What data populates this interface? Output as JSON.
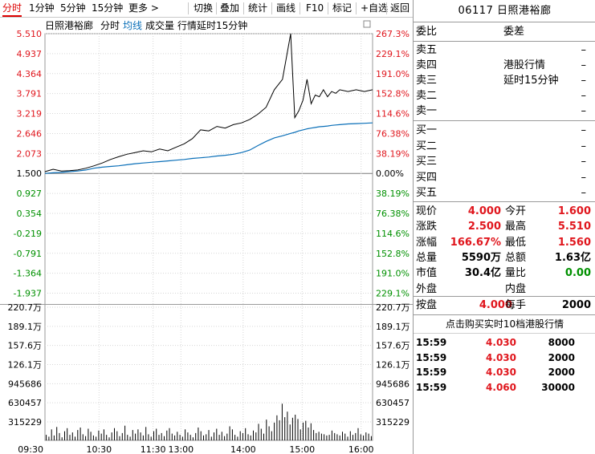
{
  "toolbar": {
    "left_items": [
      "分时",
      "1分钟",
      "5分钟",
      "15分钟",
      "更多 >"
    ],
    "right_items": [
      "切换",
      "叠加",
      "统计",
      "画线",
      "F10",
      "标记",
      "+自选",
      "返回"
    ]
  },
  "chart_header": {
    "stock_name": "日照港裕廊",
    "mode": "分时",
    "avg_line_label": "均线",
    "volume_label": "成交量",
    "delay_note": "行情延时15分钟"
  },
  "price_axis": {
    "left": [
      "5.510",
      "4.937",
      "4.364",
      "3.791",
      "3.219",
      "2.646",
      "2.073",
      "1.500",
      "0.927",
      "0.354",
      "-0.219",
      "-0.791",
      "-1.364",
      "-1.937"
    ],
    "right": [
      "267.3%",
      "229.1%",
      "191.0%",
      "152.8%",
      "114.6%",
      "76.38%",
      "38.19%",
      "0.00%",
      "38.19%",
      "76.38%",
      "114.6%",
      "152.8%",
      "191.0%",
      "229.1%"
    ]
  },
  "volume_axis": [
    "220.7万",
    "189.1万",
    "157.6万",
    "126.1万",
    "945686",
    "630457",
    "315229"
  ],
  "time_axis": [
    "09:30",
    "10:30",
    "11:30",
    "13:00",
    "14:00",
    "15:00",
    "16:00"
  ],
  "colors": {
    "up": "#e0161d",
    "down": "#009000",
    "price_line": "#000000",
    "avg_line": "#0a6fb8",
    "grid": "#d6d6d6",
    "avg_label": "#0a6fb8"
  },
  "chart_data": {
    "type": "line",
    "prev_close": 1.5,
    "ylim": [
      -1.937,
      5.51
    ],
    "x": [
      0,
      10,
      20,
      30,
      40,
      50,
      60,
      70,
      80,
      90,
      100,
      110,
      120,
      130,
      140,
      150,
      160,
      170,
      180,
      190,
      200,
      210,
      220,
      230,
      240,
      250,
      260,
      270,
      280,
      290,
      300,
      305,
      310,
      315,
      320,
      325,
      330,
      335,
      340,
      345,
      350,
      355,
      360,
      370,
      380,
      390,
      400
    ],
    "series": [
      {
        "values": [
          1.55,
          1.62,
          1.57,
          1.58,
          1.6,
          1.65,
          1.72,
          1.8,
          1.9,
          1.98,
          2.05,
          2.1,
          2.15,
          2.12,
          2.2,
          2.15,
          2.25,
          2.35,
          2.5,
          2.75,
          2.72,
          2.85,
          2.8,
          2.9,
          2.95,
          3.05,
          3.2,
          3.4,
          3.9,
          4.2,
          5.51,
          3.1,
          3.3,
          3.6,
          4.2,
          3.5,
          3.75,
          3.7,
          3.9,
          3.7,
          3.85,
          3.8,
          3.9,
          3.85,
          3.9,
          3.85,
          3.9
        ]
      },
      {
        "values": [
          1.5,
          1.52,
          1.53,
          1.55,
          1.57,
          1.6,
          1.65,
          1.68,
          1.7,
          1.72,
          1.75,
          1.78,
          1.8,
          1.82,
          1.84,
          1.86,
          1.88,
          1.9,
          1.93,
          1.95,
          1.97,
          2.0,
          2.02,
          2.05,
          2.1,
          2.17,
          2.3,
          2.42,
          2.52,
          2.58,
          2.65,
          2.68,
          2.72,
          2.75,
          2.78,
          2.8,
          2.82,
          2.84,
          2.85,
          2.86,
          2.88,
          2.89,
          2.9,
          2.92,
          2.93,
          2.94,
          2.95
        ]
      }
    ],
    "volume": {
      "ylim": [
        0,
        2207000
      ],
      "bars": [
        90000,
        60000,
        180000,
        80000,
        220000,
        120000,
        50000,
        150000,
        200000,
        90000,
        130000,
        60000,
        170000,
        210000,
        100000,
        70000,
        190000,
        140000,
        80000,
        60000,
        160000,
        110000,
        180000,
        90000,
        50000,
        130000,
        200000,
        150000,
        70000,
        120000,
        240000,
        90000,
        60000,
        170000,
        110000,
        180000,
        130000,
        80000,
        220000,
        100000,
        60000,
        150000,
        190000,
        90000,
        120000,
        70000,
        160000,
        200000,
        110000,
        80000,
        140000,
        90000,
        60000,
        180000,
        130000,
        90000,
        50000,
        120000,
        210000,
        150000,
        80000,
        100000,
        170000,
        60000,
        130000,
        190000,
        90000,
        140000,
        70000,
        110000,
        230000,
        180000,
        90000,
        60000,
        150000,
        120000,
        200000,
        100000,
        80000,
        160000,
        130000,
        270000,
        190000,
        110000,
        340000,
        230000,
        150000,
        290000,
        410000,
        330000,
        600000,
        380000,
        470000,
        260000,
        370000,
        420000,
        350000,
        180000,
        290000,
        320000,
        210000,
        280000,
        170000,
        120000,
        140000,
        110000,
        100000,
        80000,
        90000,
        160000,
        120000,
        100000,
        80000,
        140000,
        110000,
        60000,
        150000,
        90000,
        120000,
        200000,
        100000,
        80000,
        130000,
        110000,
        70000
      ]
    }
  },
  "panel": {
    "code": "06117",
    "name": "日照港裕廊",
    "weibi_label": "委比",
    "weicha_label": "委差",
    "sells": [
      "卖五",
      "卖四",
      "卖三",
      "卖二",
      "卖一"
    ],
    "buys": [
      "买一",
      "买二",
      "买三",
      "买四",
      "买五"
    ],
    "dash": "–",
    "notice_line1": "港股行情",
    "notice_line2": "延时15分钟",
    "quote": [
      {
        "l1": "现价",
        "v1": "4.000",
        "l2": "今开",
        "v2": "1.600"
      },
      {
        "l1": "涨跌",
        "v1": "2.500",
        "l2": "最高",
        "v2": "5.510"
      },
      {
        "l1": "涨幅",
        "v1": "166.67%",
        "l2": "最低",
        "v2": "1.560"
      },
      {
        "l1": "总量",
        "v1": "5590万",
        "l2": "总额",
        "v2": "1.63亿"
      },
      {
        "l1": "市值",
        "v1": "30.4亿",
        "l2": "量比",
        "v2": "0.00"
      },
      {
        "l1": "外盘",
        "v1": "",
        "l2": "内盘",
        "v2": ""
      }
    ],
    "anpan_label": "按盘",
    "anpan_value": "4.000",
    "meishou_label": "每手",
    "meishou_value": "2000",
    "trades_header": "点击购买实时10档港股行情",
    "trades": [
      {
        "time": "15:59",
        "price": "4.030",
        "vol": "8000"
      },
      {
        "time": "15:59",
        "price": "4.030",
        "vol": "2000"
      },
      {
        "time": "15:59",
        "price": "4.030",
        "vol": "2000"
      },
      {
        "time": "15:59",
        "price": "4.060",
        "vol": "30000"
      }
    ]
  }
}
